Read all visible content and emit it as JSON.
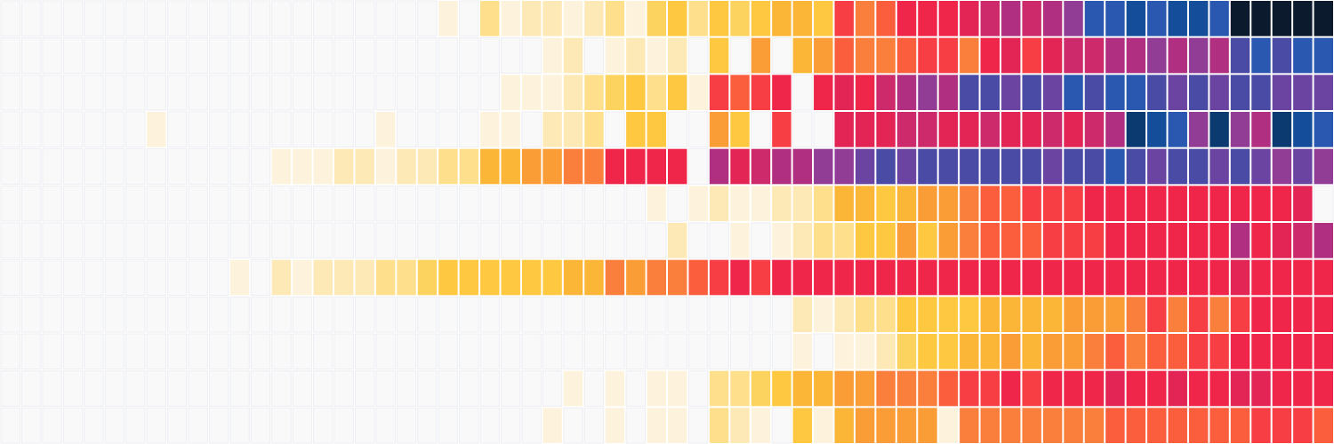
{
  "chart_data": {
    "type": "heatmap",
    "colors": [
      "#f9f9f9",
      "#fdf3dc",
      "#fde9b5",
      "#fddf8c",
      "#fdd35f",
      "#fec840",
      "#fbb537",
      "#fb9d36",
      "#fb7f3c",
      "#fa5e3c",
      "#f73e45",
      "#f0254a",
      "#e32555",
      "#cc2a6a",
      "#b12f80",
      "#913d95",
      "#6a44a0",
      "#4a4ba5",
      "#2a58b0",
      "#144e9a",
      "#0b3a70",
      "#0b1a2d"
    ],
    "values": [
      [
        0,
        0,
        0,
        0,
        0,
        0,
        0,
        0,
        0,
        0,
        0,
        0,
        0,
        0,
        0,
        0,
        0,
        0,
        0,
        0,
        0,
        1,
        0,
        3,
        1,
        2,
        2,
        1,
        2,
        3,
        1,
        4,
        5,
        3,
        5,
        4,
        5,
        6,
        6,
        5,
        10,
        8,
        9,
        11,
        11,
        11,
        12,
        13,
        14,
        13,
        14,
        15,
        18,
        18,
        19,
        18,
        19,
        19,
        18,
        21,
        21,
        21,
        21,
        21
      ],
      [
        0,
        0,
        0,
        0,
        0,
        0,
        0,
        0,
        0,
        0,
        0,
        0,
        0,
        0,
        0,
        0,
        0,
        0,
        0,
        0,
        0,
        0,
        0,
        0,
        0,
        0,
        1,
        2,
        0,
        1,
        2,
        1,
        2,
        0,
        5,
        0,
        7,
        0,
        6,
        7,
        9,
        8,
        8,
        9,
        10,
        10,
        8,
        11,
        12,
        10,
        12,
        13,
        13,
        14,
        14,
        15,
        14,
        15,
        14,
        17,
        18,
        17,
        18,
        18
      ],
      [
        0,
        0,
        0,
        0,
        0,
        0,
        0,
        0,
        0,
        0,
        0,
        0,
        0,
        0,
        0,
        0,
        0,
        0,
        0,
        0,
        0,
        0,
        0,
        0,
        1,
        1,
        1,
        2,
        3,
        4,
        5,
        3,
        5,
        1,
        10,
        9,
        10,
        11,
        0,
        11,
        12,
        11,
        13,
        14,
        15,
        14,
        17,
        17,
        16,
        17,
        16,
        18,
        17,
        18,
        18,
        17,
        16,
        17,
        16,
        17,
        17,
        16,
        16,
        16
      ],
      [
        0,
        0,
        0,
        0,
        0,
        0,
        0,
        1,
        0,
        0,
        0,
        0,
        0,
        0,
        0,
        0,
        0,
        0,
        1,
        0,
        0,
        0,
        0,
        1,
        1,
        0,
        2,
        2,
        3,
        0,
        5,
        5,
        0,
        0,
        7,
        5,
        0,
        10,
        0,
        0,
        12,
        12,
        12,
        13,
        13,
        12,
        12,
        13,
        12,
        12,
        13,
        12,
        13,
        14,
        20,
        19,
        18,
        15,
        20,
        15,
        14,
        20,
        19,
        18
      ],
      [
        0,
        0,
        0,
        0,
        0,
        0,
        0,
        0,
        0,
        0,
        0,
        0,
        0,
        1,
        1,
        1,
        2,
        2,
        1,
        2,
        2,
        3,
        3,
        6,
        6,
        7,
        7,
        8,
        8,
        11,
        11,
        11,
        11,
        0,
        14,
        12,
        13,
        14,
        14,
        15,
        15,
        16,
        17,
        16,
        17,
        17,
        17,
        17,
        17,
        17,
        16,
        17,
        17,
        18,
        17,
        16,
        17,
        17,
        16,
        17,
        16,
        15,
        16,
        15
      ],
      [
        0,
        0,
        0,
        0,
        0,
        0,
        0,
        0,
        0,
        0,
        0,
        0,
        0,
        0,
        0,
        0,
        0,
        0,
        0,
        0,
        0,
        0,
        0,
        0,
        0,
        0,
        0,
        0,
        0,
        0,
        0,
        1,
        0,
        1,
        2,
        1,
        1,
        2,
        2,
        3,
        6,
        6,
        5,
        6,
        7,
        7,
        8,
        9,
        9,
        10,
        10,
        10,
        11,
        11,
        11,
        11,
        11,
        11,
        11,
        11,
        11,
        11,
        12,
        0
      ],
      [
        0,
        0,
        0,
        0,
        0,
        0,
        0,
        0,
        0,
        0,
        0,
        0,
        0,
        0,
        0,
        0,
        0,
        0,
        0,
        0,
        0,
        0,
        0,
        0,
        0,
        0,
        0,
        0,
        0,
        0,
        0,
        0,
        2,
        0,
        0,
        1,
        0,
        1,
        2,
        3,
        3,
        5,
        5,
        7,
        5,
        7,
        8,
        9,
        9,
        9,
        10,
        10,
        10,
        11,
        11,
        11,
        11,
        11,
        11,
        14,
        11,
        12,
        13,
        14
      ],
      [
        0,
        0,
        0,
        0,
        0,
        0,
        0,
        0,
        0,
        0,
        0,
        1,
        0,
        2,
        1,
        2,
        2,
        2,
        3,
        3,
        4,
        5,
        5,
        5,
        5,
        5,
        5,
        6,
        6,
        8,
        7,
        8,
        8,
        9,
        10,
        11,
        10,
        11,
        11,
        11,
        11,
        11,
        11,
        11,
        11,
        11,
        11,
        11,
        11,
        11,
        11,
        11,
        11,
        11,
        11,
        11,
        11,
        11,
        11,
        12,
        11,
        11,
        11,
        11
      ],
      [
        0,
        0,
        0,
        0,
        0,
        0,
        0,
        0,
        0,
        0,
        0,
        0,
        0,
        0,
        0,
        0,
        0,
        0,
        0,
        0,
        0,
        0,
        0,
        0,
        0,
        0,
        0,
        0,
        0,
        0,
        0,
        0,
        0,
        0,
        0,
        0,
        0,
        0,
        2,
        1,
        2,
        3,
        3,
        5,
        5,
        5,
        5,
        6,
        6,
        6,
        6,
        7,
        7,
        7,
        8,
        10,
        8,
        10,
        8,
        10,
        11,
        11,
        11,
        11
      ],
      [
        0,
        0,
        0,
        0,
        0,
        0,
        0,
        0,
        0,
        0,
        0,
        0,
        0,
        0,
        0,
        0,
        0,
        0,
        0,
        0,
        0,
        0,
        0,
        0,
        0,
        0,
        0,
        0,
        0,
        0,
        0,
        0,
        0,
        0,
        0,
        0,
        0,
        0,
        1,
        0,
        1,
        1,
        2,
        4,
        5,
        5,
        6,
        6,
        7,
        6,
        7,
        7,
        8,
        9,
        8,
        9,
        9,
        10,
        10,
        11,
        11,
        11,
        11,
        11
      ],
      [
        0,
        0,
        0,
        0,
        0,
        0,
        0,
        0,
        0,
        0,
        0,
        0,
        0,
        0,
        0,
        0,
        0,
        0,
        0,
        0,
        0,
        0,
        0,
        0,
        0,
        0,
        0,
        1,
        0,
        1,
        0,
        1,
        1,
        0,
        3,
        3,
        4,
        5,
        6,
        6,
        7,
        7,
        8,
        8,
        8,
        9,
        10,
        10,
        11,
        10,
        11,
        11,
        11,
        12,
        11,
        11,
        12,
        11,
        11,
        12,
        12,
        11,
        11,
        11
      ],
      [
        0,
        0,
        0,
        0,
        0,
        0,
        0,
        0,
        0,
        0,
        0,
        0,
        0,
        0,
        0,
        0,
        0,
        0,
        0,
        0,
        0,
        0,
        0,
        0,
        0,
        0,
        1,
        0,
        0,
        1,
        0,
        1,
        1,
        0,
        3,
        2,
        1,
        0,
        5,
        1,
        6,
        7,
        7,
        7,
        7,
        1,
        8,
        8,
        8,
        8,
        8,
        8,
        8,
        9,
        9,
        9,
        9,
        9,
        9,
        9,
        10,
        10,
        10,
        9
      ]
    ]
  }
}
